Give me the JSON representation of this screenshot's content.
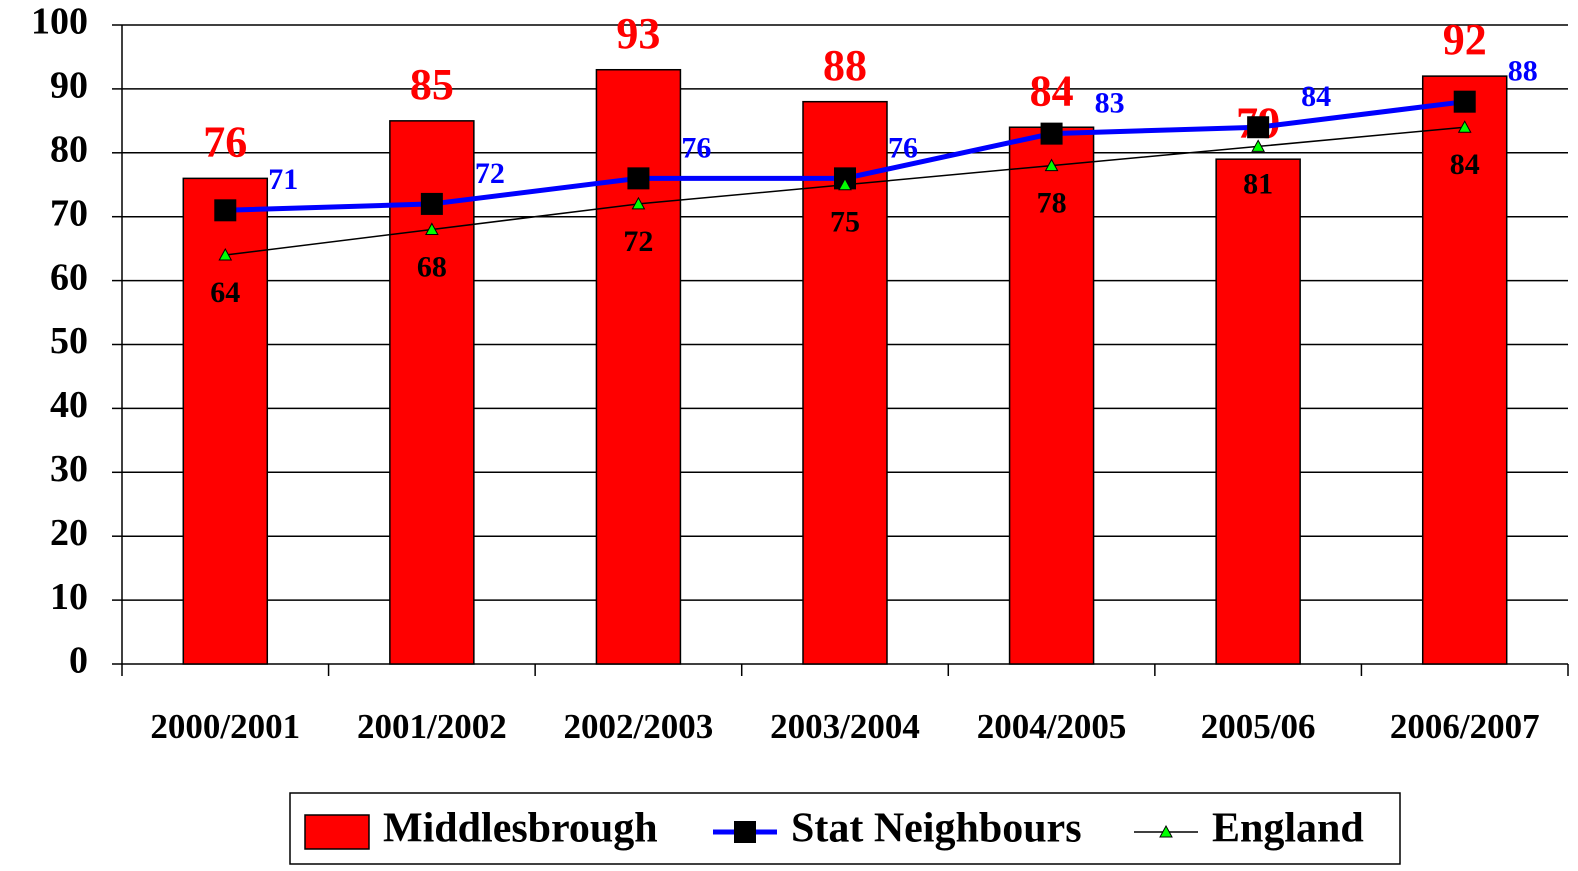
{
  "chart_data": {
    "type": "bar",
    "categories": [
      "2000/2001",
      "2001/2002",
      "2002/2003",
      "2003/2004",
      "2004/2005",
      "2005/06",
      "2006/2007"
    ],
    "series": [
      {
        "name": "Middlesbrough",
        "type": "bar",
        "color": "#ff0000",
        "values": [
          76,
          85,
          93,
          88,
          84,
          79,
          92
        ]
      },
      {
        "name": "Stat Neighbours",
        "type": "line",
        "color": "#0000ff",
        "values": [
          71,
          72,
          76,
          76,
          83,
          84,
          88
        ]
      },
      {
        "name": "England",
        "type": "line",
        "color": "#000000",
        "values": [
          64,
          68,
          72,
          75,
          78,
          81,
          84
        ]
      }
    ],
    "ylim": [
      0,
      100
    ],
    "yticks": [
      0,
      10,
      20,
      30,
      40,
      50,
      60,
      70,
      80,
      90,
      100
    ],
    "grid": true,
    "legend": "bottom"
  }
}
